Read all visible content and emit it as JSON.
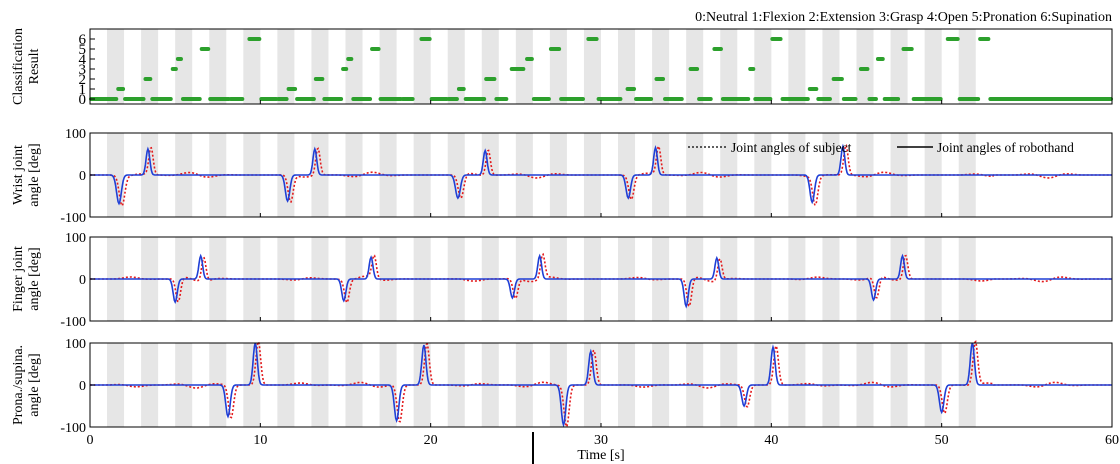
{
  "figure": {
    "class_legend": "0:Neutral  1:Flexion  2:Extension  3:Grasp  4:Open  5:Pronation  6:Supination",
    "series_legend": {
      "subject": "Joint angles of subject",
      "robothand": "Joint angles of robothand"
    },
    "colors": {
      "subject": "#e31a1c",
      "robothand": "#1f3fd6",
      "classification": "#2ca02c",
      "stripe": "#e6e6e6"
    }
  },
  "chart_data": [
    {
      "type": "scatter",
      "id": "classification",
      "ylabel": [
        "Classification",
        "Result"
      ],
      "xlim": [
        0,
        60
      ],
      "ylim": [
        -0.5,
        7
      ],
      "yticks": [
        0,
        1,
        2,
        3,
        4,
        5,
        6
      ],
      "stripe_period": 1,
      "segments": [
        {
          "x": [
            0,
            1.6
          ],
          "y": 0
        },
        {
          "x": [
            1.6,
            2.0
          ],
          "y": 1
        },
        {
          "x": [
            2.0,
            3.2
          ],
          "y": 0
        },
        {
          "x": [
            3.2,
            3.6
          ],
          "y": 2
        },
        {
          "x": [
            3.6,
            4.8
          ],
          "y": 0
        },
        {
          "x": [
            4.8,
            5.1
          ],
          "y": 3
        },
        {
          "x": [
            5.1,
            5.4
          ],
          "y": 4
        },
        {
          "x": [
            5.4,
            6.5
          ],
          "y": 0
        },
        {
          "x": [
            6.5,
            7.0
          ],
          "y": 5
        },
        {
          "x": [
            7.0,
            8.2
          ],
          "y": 0
        },
        {
          "x": [
            8.2,
            9.0
          ],
          "y": 0
        },
        {
          "x": [
            9.3,
            10.0
          ],
          "y": 6
        },
        {
          "x": [
            10.0,
            11.0
          ],
          "y": 0
        },
        {
          "x": [
            11.0,
            11.6
          ],
          "y": 0
        },
        {
          "x": [
            11.6,
            12.1
          ],
          "y": 1
        },
        {
          "x": [
            12.1,
            13.2
          ],
          "y": 0
        },
        {
          "x": [
            13.2,
            13.7
          ],
          "y": 2
        },
        {
          "x": [
            13.7,
            14.8
          ],
          "y": 0
        },
        {
          "x": [
            14.8,
            15.1
          ],
          "y": 3
        },
        {
          "x": [
            15.1,
            15.4
          ],
          "y": 4
        },
        {
          "x": [
            15.4,
            16.5
          ],
          "y": 0
        },
        {
          "x": [
            16.5,
            17.0
          ],
          "y": 5
        },
        {
          "x": [
            17.0,
            18.3
          ],
          "y": 0
        },
        {
          "x": [
            18.3,
            19.0
          ],
          "y": 0
        },
        {
          "x": [
            19.4,
            20.0
          ],
          "y": 6
        },
        {
          "x": [
            20.0,
            21.0
          ],
          "y": 0
        },
        {
          "x": [
            21.0,
            21.6
          ],
          "y": 0
        },
        {
          "x": [
            21.6,
            22.0
          ],
          "y": 1
        },
        {
          "x": [
            22.0,
            23.2
          ],
          "y": 0
        },
        {
          "x": [
            23.2,
            23.8
          ],
          "y": 2
        },
        {
          "x": [
            23.8,
            24.5
          ],
          "y": 0
        },
        {
          "x": [
            24.7,
            25.5
          ],
          "y": 3
        },
        {
          "x": [
            25.6,
            26.0
          ],
          "y": 4
        },
        {
          "x": [
            26.0,
            27.0
          ],
          "y": 0
        },
        {
          "x": [
            27.0,
            27.6
          ],
          "y": 5
        },
        {
          "x": [
            27.6,
            29.0
          ],
          "y": 0
        },
        {
          "x": [
            29.2,
            29.8
          ],
          "y": 6
        },
        {
          "x": [
            29.8,
            31.2
          ],
          "y": 0
        },
        {
          "x": [
            31.5,
            32.0
          ],
          "y": 1
        },
        {
          "x": [
            32.0,
            33.0
          ],
          "y": 0
        },
        {
          "x": [
            33.2,
            33.7
          ],
          "y": 2
        },
        {
          "x": [
            33.7,
            34.8
          ],
          "y": 0
        },
        {
          "x": [
            35.2,
            35.7
          ],
          "y": 3
        },
        {
          "x": [
            35.7,
            36.5
          ],
          "y": 0
        },
        {
          "x": [
            36.6,
            37.1
          ],
          "y": 5
        },
        {
          "x": [
            37.1,
            38.7
          ],
          "y": 0
        },
        {
          "x": [
            38.7,
            39.0
          ],
          "y": 3
        },
        {
          "x": [
            39.0,
            40.0
          ],
          "y": 0
        },
        {
          "x": [
            40.0,
            40.6
          ],
          "y": 6
        },
        {
          "x": [
            40.6,
            42.2
          ],
          "y": 0
        },
        {
          "x": [
            42.2,
            42.7
          ],
          "y": 1
        },
        {
          "x": [
            42.7,
            43.5
          ],
          "y": 0
        },
        {
          "x": [
            43.6,
            44.2
          ],
          "y": 2
        },
        {
          "x": [
            44.2,
            45.0
          ],
          "y": 0
        },
        {
          "x": [
            45.2,
            45.7
          ],
          "y": 3
        },
        {
          "x": [
            45.7,
            46.2
          ],
          "y": 0
        },
        {
          "x": [
            46.2,
            46.6
          ],
          "y": 4
        },
        {
          "x": [
            46.6,
            47.5
          ],
          "y": 0
        },
        {
          "x": [
            47.7,
            48.3
          ],
          "y": 5
        },
        {
          "x": [
            48.3,
            50.0
          ],
          "y": 0
        },
        {
          "x": [
            50.3,
            51.0
          ],
          "y": 6
        },
        {
          "x": [
            51.0,
            52.2
          ],
          "y": 0
        },
        {
          "x": [
            52.2,
            52.8
          ],
          "y": 6
        },
        {
          "x": [
            52.8,
            60.0
          ],
          "y": 0
        }
      ]
    },
    {
      "type": "line",
      "id": "wrist",
      "ylabel": [
        "Wrist joint",
        "angle [deg]"
      ],
      "xlim": [
        0,
        60
      ],
      "ylim": [
        -100,
        100
      ],
      "yticks": [
        100,
        0,
        -100
      ],
      "events": [
        {
          "t": 1.7,
          "a": -68,
          "w": 0.28
        },
        {
          "t": 3.4,
          "a": 62,
          "w": 0.22
        },
        {
          "t": 11.6,
          "a": -62,
          "w": 0.26
        },
        {
          "t": 13.2,
          "a": 62,
          "w": 0.22
        },
        {
          "t": 21.6,
          "a": -55,
          "w": 0.28
        },
        {
          "t": 23.2,
          "a": 58,
          "w": 0.22
        },
        {
          "t": 31.6,
          "a": -55,
          "w": 0.26
        },
        {
          "t": 33.2,
          "a": 65,
          "w": 0.22
        },
        {
          "t": 42.4,
          "a": -65,
          "w": 0.26
        },
        {
          "t": 44.2,
          "a": 68,
          "w": 0.22
        }
      ],
      "series": [
        {
          "name": "Joint angles of subject",
          "style": "dotted"
        },
        {
          "name": "Joint angles of robothand",
          "style": "solid"
        }
      ]
    },
    {
      "type": "line",
      "id": "finger",
      "ylabel": [
        "Finger joint",
        "angle [deg]"
      ],
      "xlim": [
        0,
        60
      ],
      "ylim": [
        -100,
        100
      ],
      "yticks": [
        100,
        0,
        -100
      ],
      "events": [
        {
          "t": 5.0,
          "a": -55,
          "w": 0.24
        },
        {
          "t": 6.5,
          "a": 55,
          "w": 0.22
        },
        {
          "t": 14.9,
          "a": -52,
          "w": 0.24
        },
        {
          "t": 16.5,
          "a": 52,
          "w": 0.22
        },
        {
          "t": 24.8,
          "a": -45,
          "w": 0.24
        },
        {
          "t": 26.4,
          "a": 55,
          "w": 0.22
        },
        {
          "t": 35.0,
          "a": -65,
          "w": 0.24
        },
        {
          "t": 36.8,
          "a": 50,
          "w": 0.22
        },
        {
          "t": 46.0,
          "a": -50,
          "w": 0.24
        },
        {
          "t": 47.7,
          "a": 55,
          "w": 0.22
        }
      ],
      "series": [
        {
          "name": "Joint angles of subject",
          "style": "dotted"
        },
        {
          "name": "Joint angles of robothand",
          "style": "solid"
        }
      ]
    },
    {
      "type": "line",
      "id": "pronation",
      "ylabel": [
        "Prona./supina.",
        "angle [deg]"
      ],
      "xlim": [
        0,
        60
      ],
      "ylim": [
        -100,
        100
      ],
      "yticks": [
        100,
        0,
        -100
      ],
      "events": [
        {
          "t": 8.1,
          "a": -75,
          "w": 0.26
        },
        {
          "t": 9.7,
          "a": 100,
          "w": 0.24
        },
        {
          "t": 18.0,
          "a": -85,
          "w": 0.26
        },
        {
          "t": 19.6,
          "a": 95,
          "w": 0.24
        },
        {
          "t": 27.8,
          "a": -95,
          "w": 0.26
        },
        {
          "t": 29.4,
          "a": 80,
          "w": 0.24
        },
        {
          "t": 38.4,
          "a": -50,
          "w": 0.26
        },
        {
          "t": 40.1,
          "a": 90,
          "w": 0.24
        },
        {
          "t": 50.0,
          "a": -65,
          "w": 0.26
        },
        {
          "t": 51.8,
          "a": 100,
          "w": 0.24
        }
      ],
      "series": [
        {
          "name": "Joint angles of subject",
          "style": "dotted"
        },
        {
          "name": "Joint angles of robothand",
          "style": "solid"
        }
      ]
    }
  ],
  "x_axis": {
    "label": "Time [s]",
    "ticks": [
      0,
      10,
      20,
      30,
      40,
      50,
      60
    ]
  }
}
